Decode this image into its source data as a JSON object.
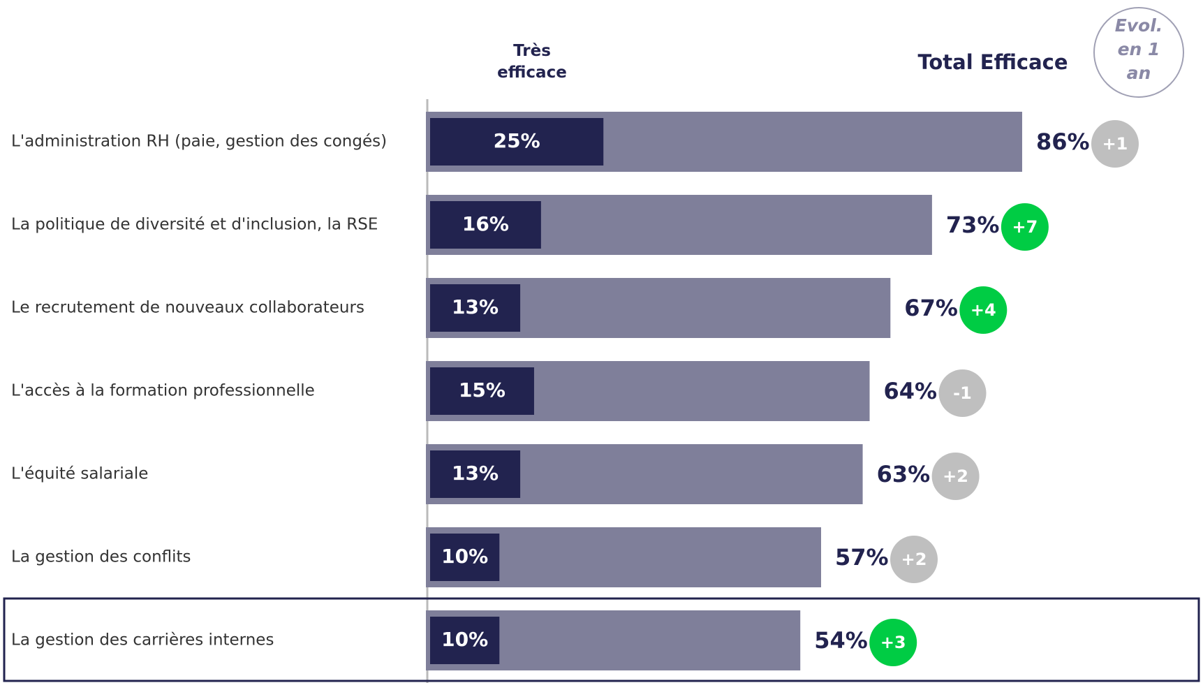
{
  "chart_data": {
    "type": "bar",
    "orientation": "horizontal",
    "categories": [
      "L'administration RH (paie, gestion des congés)",
      "La politique de diversité et d'inclusion, la RSE",
      "Le recrutement de nouveaux collaborateurs",
      "L'accès à la formation professionnelle",
      "L'équité salariale",
      "La gestion des conflits",
      "La gestion des carrières internes"
    ],
    "series": [
      {
        "name": "Très efficace",
        "color": "#22234f",
        "values": [
          25,
          16,
          13,
          15,
          13,
          10,
          10
        ],
        "value_labels": [
          "25%",
          "16%",
          "13%",
          "15%",
          "13%",
          "10%",
          "10%"
        ]
      },
      {
        "name": "Total Efficace",
        "color": "#7f7f9a",
        "values": [
          86,
          73,
          67,
          64,
          63,
          57,
          54
        ],
        "value_labels": [
          "86%",
          "73%",
          "67%",
          "64%",
          "63%",
          "57%",
          "54%"
        ]
      }
    ],
    "evolution": {
      "name": "Evol. en 1 an",
      "values": [
        1,
        7,
        4,
        -1,
        2,
        2,
        3
      ],
      "value_labels": [
        "+1",
        "+7",
        "+4",
        "-1",
        "+2",
        "+2",
        "+3"
      ],
      "colors": [
        "#bfbfbf",
        "#00cc44",
        "#00cc44",
        "#bfbfbf",
        "#bfbfbf",
        "#bfbfbf",
        "#00cc44"
      ]
    },
    "highlight": 6
  }
}
